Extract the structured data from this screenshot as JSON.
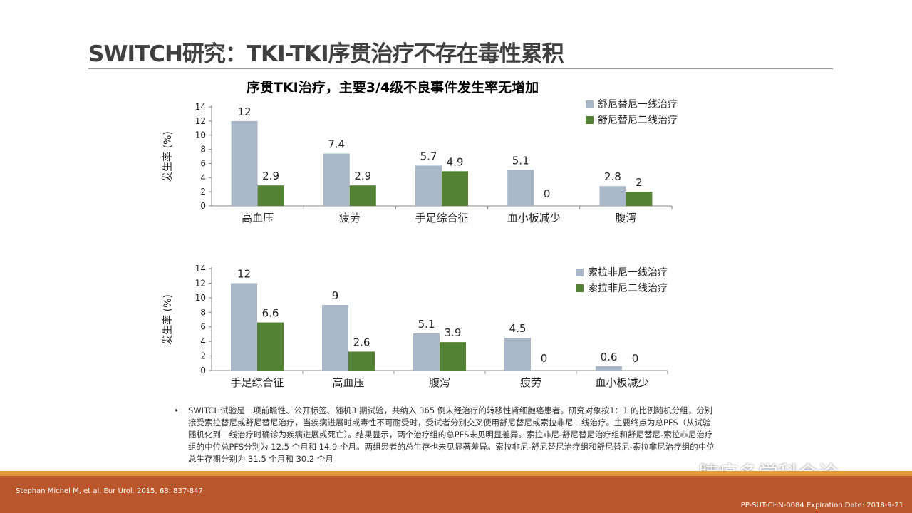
{
  "title": "SWITCH研究：TKI-TKI序贯治疗不存在毒性累积",
  "subtitle": "序贯TKI治疗，主要3/4级不良事件发生率无增加",
  "chart_data": [
    {
      "type": "bar",
      "ylabel": "发生率 (%)",
      "ylim": [
        0,
        14
      ],
      "yticks": [
        0,
        2,
        4,
        6,
        8,
        10,
        12,
        14
      ],
      "categories": [
        "高血压",
        "疲劳",
        "手足综合征",
        "血小板减少",
        "腹泻"
      ],
      "series": [
        {
          "name": "舒尼替尼一线治疗",
          "color": "#A9B7C9",
          "values": [
            12,
            7.4,
            5.7,
            5.1,
            2.8
          ],
          "labels": [
            "12",
            "7.4",
            "5.7",
            "5.1",
            "2.8"
          ]
        },
        {
          "name": "舒尼替尼二线治疗",
          "color": "#548235",
          "values": [
            2.9,
            2.9,
            4.9,
            0,
            2
          ],
          "labels": [
            "2.9",
            "2.9",
            "4.9",
            "0",
            "2"
          ]
        }
      ],
      "legend": "top-right"
    },
    {
      "type": "bar",
      "ylabel": "发生率 (%)",
      "ylim": [
        0,
        14
      ],
      "yticks": [
        0,
        2,
        4,
        6,
        8,
        10,
        12,
        14
      ],
      "categories": [
        "手足综合征",
        "高血压",
        "腹泻",
        "疲劳",
        "血小板减少"
      ],
      "series": [
        {
          "name": "索拉非尼一线治疗",
          "color": "#A9B7C9",
          "values": [
            12,
            9,
            5.1,
            4.5,
            0.6
          ],
          "labels": [
            "12",
            "9",
            "5.1",
            "4.5",
            "0.6"
          ]
        },
        {
          "name": "索拉非尼二线治疗",
          "color": "#548235",
          "values": [
            6.6,
            2.6,
            3.9,
            0,
            0
          ],
          "labels": [
            "6.6",
            "2.6",
            "3.9",
            "0",
            "0"
          ]
        }
      ],
      "legend": "top-right"
    }
  ],
  "note": {
    "bullet": "•",
    "text": "SWITCH试验是一项前瞻性、公开标签、随机3 期试验，共纳入 365 例未经治疗的转移性肾细胞癌患者。研究对象按1：1 的比例随机分组，分别接受索拉替尼或舒尼替尼治疗，当疾病进展时或毒性不可耐受时，受试者分别交叉使用舒尼替尼或索拉非尼二线治疗。主要终点为总PFS（从试验随机化到二线治疗时确诊为疾病进展或死亡）。结果显示，两个治疗组的总PFS未见明显差异。索拉非尼-舒尼替尼治疗组和舒尼替尼-索拉非尼治疗组的中位总PFS分别为 12.5 个月和 14.9 个月。两组患者的总生存也未见显著差异。索拉非尼-舒尼替尼治疗组和舒尼替尼-索拉非尼治疗组的中位总生存期分别为  31.5 个月和 30.2 个月"
  },
  "footer": {
    "citation": "Stephan Michel M, et al. Eur Urol. 2015, 68: 837-847",
    "code": "PP-SUT-CHN-0084 Expiration Date: 2018-9-21"
  },
  "watermark": "肺癌多学科会诊"
}
